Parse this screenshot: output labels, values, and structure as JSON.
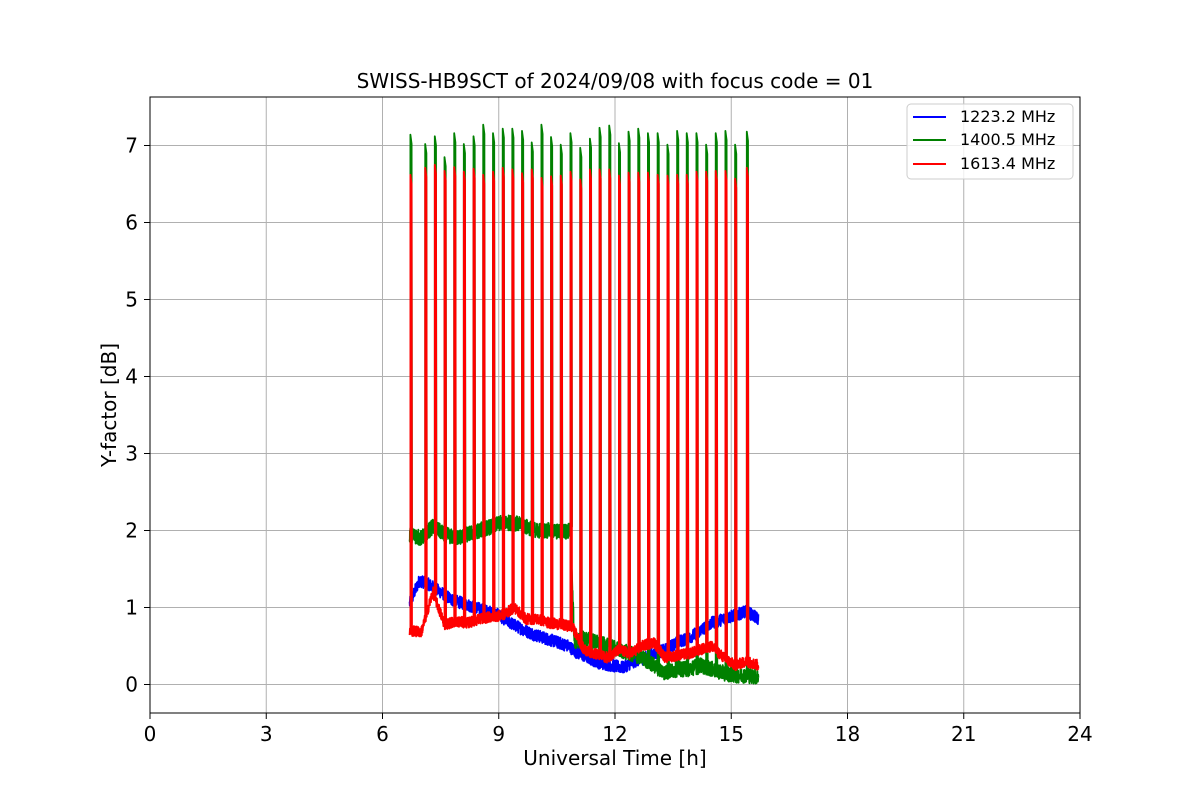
{
  "chart_data": {
    "type": "line",
    "title": "SWISS-HB9SCT of 2024/09/08 with focus code = 01",
    "xlabel": "Universal Time [h]",
    "ylabel": "Y-factor [dB]",
    "xlim": [
      0,
      24
    ],
    "ylim": [
      -0.37,
      7.63
    ],
    "xticks": [
      0,
      3,
      6,
      9,
      12,
      15,
      18,
      21,
      24
    ],
    "yticks": [
      0,
      1,
      2,
      3,
      4,
      5,
      6,
      7
    ],
    "grid": true,
    "legend": "top-right",
    "calibration_spikes": {
      "times_h": [
        6.72,
        7.1,
        7.35,
        7.6,
        7.85,
        8.1,
        8.35,
        8.6,
        8.85,
        9.1,
        9.35,
        9.6,
        9.85,
        10.1,
        10.35,
        10.6,
        10.85,
        11.1,
        11.35,
        11.6,
        11.85,
        12.1,
        12.35,
        12.6,
        12.85,
        13.1,
        13.35,
        13.6,
        13.85,
        14.1,
        14.35,
        14.6,
        14.85,
        15.1,
        15.4
      ],
      "peak_1400_5_MHz": [
        7.14,
        7.02,
        7.12,
        6.85,
        7.16,
        7.02,
        7.12,
        7.27,
        7.16,
        7.22,
        7.22,
        7.19,
        7.04,
        7.27,
        7.11,
        7.01,
        7.16,
        6.97,
        7.09,
        7.23,
        7.26,
        7.03,
        7.18,
        7.22,
        7.16,
        7.16,
        7.01,
        7.19,
        7.16,
        7.16,
        7.01,
        7.16,
        7.19,
        7.01,
        7.18
      ],
      "peak_1613_4_MHz": [
        6.62,
        6.71,
        6.75,
        6.67,
        6.72,
        6.66,
        6.7,
        6.62,
        6.66,
        6.71,
        6.69,
        6.64,
        6.69,
        6.58,
        6.6,
        6.61,
        6.66,
        6.56,
        6.69,
        6.69,
        6.69,
        6.61,
        6.65,
        6.65,
        6.65,
        6.62,
        6.61,
        6.62,
        6.62,
        6.66,
        6.66,
        6.67,
        6.67,
        6.57,
        6.71
      ]
    },
    "series": [
      {
        "name": "1223.2 MHz",
        "color": "#0000ff",
        "noise": 0.08,
        "x": [
          6.7,
          6.95,
          7.2,
          7.5,
          7.8,
          8.1,
          8.4,
          8.7,
          9.0,
          9.3,
          9.6,
          9.9,
          10.2,
          10.5,
          10.8,
          11.0,
          11.3,
          11.6,
          11.9,
          12.2,
          12.5,
          12.8,
          13.0,
          13.3,
          13.6,
          13.9,
          14.2,
          14.5,
          14.8,
          15.1,
          15.4,
          15.7
        ],
        "y": [
          1.05,
          1.35,
          1.3,
          1.2,
          1.1,
          1.05,
          1.0,
          0.95,
          0.9,
          0.8,
          0.72,
          0.65,
          0.6,
          0.55,
          0.5,
          0.42,
          0.35,
          0.28,
          0.25,
          0.22,
          0.3,
          0.35,
          0.4,
          0.45,
          0.55,
          0.6,
          0.7,
          0.8,
          0.85,
          0.9,
          0.95,
          0.85
        ]
      },
      {
        "name": "1400.5 MHz",
        "color": "#008000",
        "noise": 0.1,
        "x": [
          6.7,
          7.0,
          7.3,
          7.6,
          7.9,
          8.2,
          8.5,
          8.8,
          9.1,
          9.4,
          9.7,
          10.0,
          10.3,
          10.6,
          10.85,
          10.95,
          11.2,
          11.5,
          11.8,
          12.1,
          12.4,
          12.7,
          13.0,
          13.3,
          13.6,
          13.9,
          14.2,
          14.5,
          14.8,
          15.1,
          15.4,
          15.7
        ],
        "y": [
          1.95,
          1.9,
          2.05,
          1.95,
          1.9,
          1.95,
          2.0,
          2.05,
          2.1,
          2.1,
          2.05,
          2.0,
          2.0,
          1.98,
          2.0,
          0.55,
          0.6,
          0.55,
          0.5,
          0.45,
          0.4,
          0.35,
          0.25,
          0.15,
          0.2,
          0.2,
          0.25,
          0.2,
          0.15,
          0.12,
          0.12,
          0.1
        ]
      },
      {
        "name": "1613.4 MHz",
        "color": "#ff0000",
        "noise": 0.07,
        "x": [
          6.7,
          7.0,
          7.3,
          7.6,
          7.9,
          8.2,
          8.5,
          8.8,
          9.1,
          9.4,
          9.7,
          10.0,
          10.3,
          10.6,
          10.9,
          11.2,
          11.5,
          11.8,
          12.1,
          12.4,
          12.7,
          13.0,
          13.3,
          13.6,
          13.9,
          14.2,
          14.5,
          14.8,
          15.1,
          15.4,
          15.7
        ],
        "y": [
          0.7,
          0.68,
          1.2,
          0.78,
          0.82,
          0.8,
          0.85,
          0.88,
          0.9,
          1.0,
          0.85,
          0.85,
          0.8,
          0.78,
          0.75,
          0.45,
          0.4,
          0.35,
          0.45,
          0.4,
          0.5,
          0.55,
          0.35,
          0.38,
          0.4,
          0.45,
          0.5,
          0.35,
          0.25,
          0.3,
          0.25
        ]
      }
    ]
  }
}
